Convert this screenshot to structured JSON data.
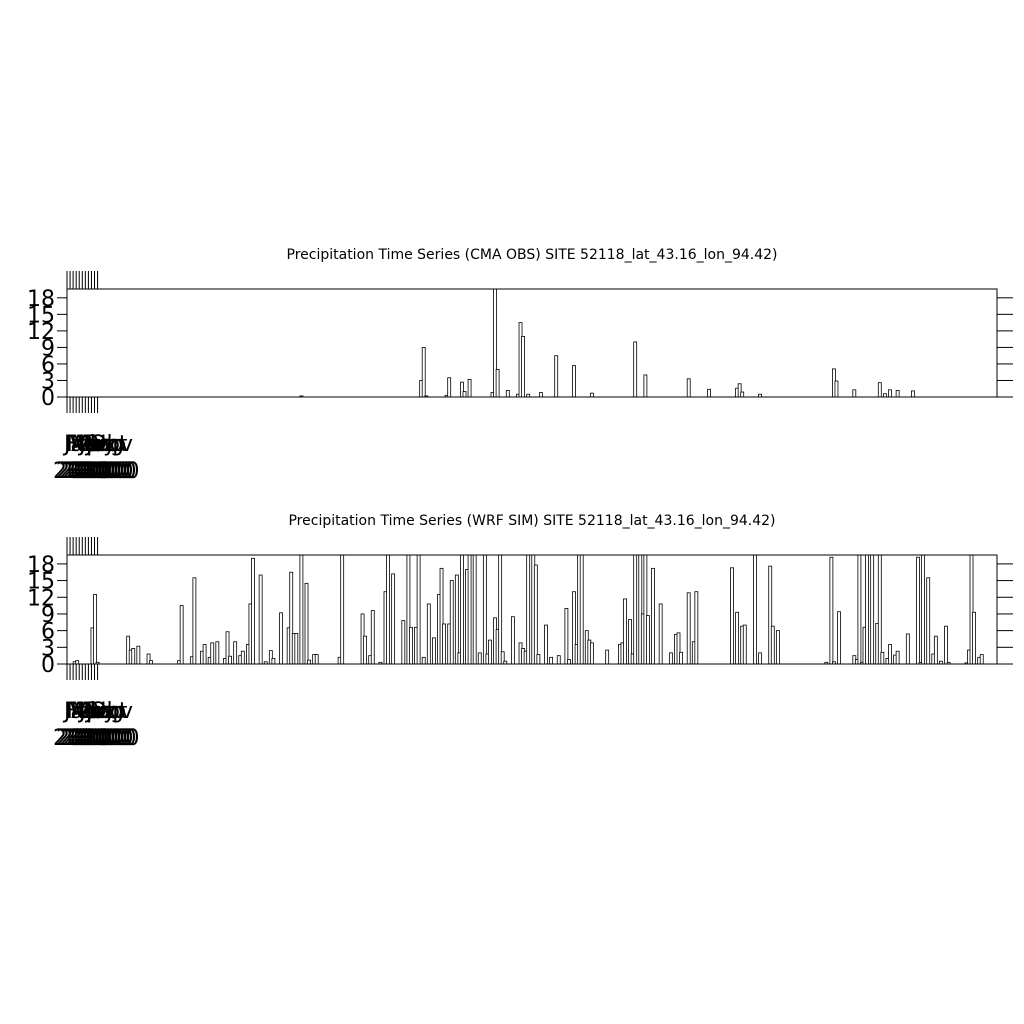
{
  "chart_data": [
    {
      "type": "bar",
      "title": "Precipitation Time Series (CMA OBS) SITE 52118_lat_43.16_lon_94.42)",
      "x": [
        92,
        139,
        140,
        141,
        149,
        150,
        155,
        156,
        158,
        167,
        168,
        169,
        173,
        177,
        178,
        179,
        181,
        186,
        192,
        199,
        206,
        223,
        227,
        244,
        252,
        263,
        264,
        265,
        272,
        301,
        302,
        309,
        319,
        321,
        323,
        326,
        332
      ],
      "values": [
        0.2,
        3,
        9,
        0.2,
        0.3,
        3.5,
        2.7,
        1,
        3.2,
        0.8,
        20,
        5,
        1.2,
        0.5,
        13.5,
        11,
        0.5,
        0.8,
        7.5,
        5.7,
        0.7,
        10,
        4,
        3.3,
        1.4,
        1.6,
        2.4,
        0.9,
        0.5,
        5.1,
        2.9,
        1.3,
        2.6,
        0.6,
        1.3,
        1.2,
        1.1
      ],
      "color": "#ffffff",
      "xlim": [
        0,
        365
      ],
      "ylim": [
        0,
        19.6
      ],
      "yticks": [
        0,
        3,
        6,
        9,
        12,
        15,
        18
      ],
      "xticks": [
        {
          "value": 0,
          "label": "Jan"
        },
        {
          "value": 1.2,
          "label": "Feb"
        },
        {
          "value": 2.4,
          "label": "Mar"
        },
        {
          "value": 3.6,
          "label": "Apr"
        },
        {
          "value": 4.8,
          "label": "May"
        },
        {
          "value": 6,
          "label": "Jun"
        },
        {
          "value": 7.2,
          "label": "Jul"
        },
        {
          "value": 8.4,
          "label": "Aug"
        },
        {
          "value": 9.6,
          "label": "Sep"
        },
        {
          "value": 10.8,
          "label": "Oct"
        },
        {
          "value": 12,
          "label": "Nov"
        }
      ],
      "xtick_years": [
        "2010",
        "2010",
        "2010",
        "2010",
        "2010",
        "2010",
        "2010",
        "2010",
        "2010",
        "2010",
        "2010"
      ]
    },
    {
      "type": "bar",
      "title": "Precipitation Time Series (WRF SIM) SITE 52118_lat_43.16_lon_94.42)",
      "x": [
        3,
        4,
        10,
        11,
        12,
        24,
        25,
        26,
        28,
        32,
        33,
        44,
        45,
        49,
        50,
        53,
        54,
        56,
        57,
        59,
        62,
        63,
        64,
        66,
        68,
        69,
        71,
        72,
        73,
        76,
        78,
        80,
        81,
        84,
        87,
        88,
        89,
        90,
        92,
        94,
        95,
        97,
        98,
        107,
        108,
        116,
        117,
        119,
        120,
        123,
        125,
        126,
        128,
        132,
        134,
        135,
        137,
        138,
        140,
        142,
        144,
        146,
        147,
        148,
        150,
        151,
        153,
        154,
        155,
        157,
        158,
        160,
        162,
        164,
        165,
        166,
        168,
        169,
        170,
        171,
        172,
        175,
        178,
        179,
        180,
        181,
        183,
        184,
        185,
        188,
        190,
        193,
        196,
        197,
        199,
        200,
        201,
        202,
        204,
        205,
        206,
        212,
        217,
        218,
        219,
        221,
        222,
        223,
        225,
        226,
        227,
        228,
        230,
        233,
        237,
        239,
        240,
        241,
        244,
        246,
        247,
        261,
        263,
        265,
        266,
        270,
        272,
        276,
        277,
        279,
        298,
        300,
        301,
        303,
        309,
        310,
        311,
        312,
        313,
        314,
        316,
        318,
        319,
        320,
        322,
        323,
        325,
        326,
        330,
        334,
        335,
        336,
        338,
        340,
        341,
        343,
        345,
        346,
        353,
        354,
        355,
        356,
        358,
        359
      ],
      "values": [
        0.4,
        0.6,
        6.5,
        12.5,
        0.3,
        5,
        2.5,
        2.8,
        3.2,
        1.8,
        0.6,
        0.6,
        10.5,
        1.3,
        15.5,
        2.3,
        3.5,
        1.2,
        3.8,
        4,
        1,
        5.8,
        1.4,
        4,
        1.5,
        2.3,
        3.5,
        10.8,
        19,
        16,
        0.4,
        2.4,
        1,
        9.2,
        6.5,
        16.5,
        5.5,
        5.5,
        20,
        14.5,
        0.7,
        1.7,
        1.7,
        1.2,
        20,
        9,
        5,
        1.5,
        9.6,
        0.3,
        13,
        20,
        16.2,
        7.8,
        20,
        6.6,
        6.6,
        20,
        1.2,
        10.8,
        4.7,
        12.5,
        17.2,
        7.2,
        7.2,
        15,
        16,
        2,
        20,
        17,
        20,
        20,
        2,
        20,
        1.8,
        4.3,
        8.3,
        6.2,
        20,
        2.2,
        0.5,
        8.5,
        3.8,
        2.8,
        2.3,
        20,
        20,
        17.8,
        1.7,
        7,
        1.2,
        1.5,
        10,
        0.8,
        13,
        3.5,
        20,
        20,
        6,
        4.3,
        3.8,
        2.5,
        3.5,
        3.8,
        11.7,
        8,
        1.8,
        20,
        20,
        9,
        20,
        8.7,
        17.2,
        10.8,
        2,
        5.3,
        5.6,
        2.1,
        12.8,
        4,
        13,
        17.3,
        9.3,
        6.8,
        7,
        20,
        2,
        17.6,
        6.8,
        6,
        0.3,
        19.2,
        0.4,
        9.4,
        1.5,
        0.8,
        20,
        0.3,
        6.6,
        20,
        20,
        7.3,
        20,
        2.1,
        1,
        3.5,
        1.6,
        2.3,
        5.4,
        19.2,
        0.3,
        20,
        15.5,
        1.8,
        5,
        0.5,
        6.8,
        0.3,
        0.2,
        2.5,
        20,
        9.3,
        1.2,
        1.7
      ],
      "color": "#ffffff",
      "xlim": [
        0,
        365
      ],
      "ylim": [
        0,
        19.6
      ],
      "yticks": [
        0,
        3,
        6,
        9,
        12,
        15,
        18
      ],
      "xticks": [
        {
          "value": 0,
          "label": "Jan"
        },
        {
          "value": 1.2,
          "label": "Feb"
        },
        {
          "value": 2.4,
          "label": "Mar"
        },
        {
          "value": 3.6,
          "label": "Apr"
        },
        {
          "value": 4.8,
          "label": "May"
        },
        {
          "value": 6,
          "label": "Jun"
        },
        {
          "value": 7.2,
          "label": "Jul"
        },
        {
          "value": 8.4,
          "label": "Aug"
        },
        {
          "value": 9.6,
          "label": "Sep"
        },
        {
          "value": 10.8,
          "label": "Oct"
        },
        {
          "value": 12,
          "label": "Nov"
        }
      ],
      "xtick_years": [
        "2010",
        "2010",
        "2010",
        "2010",
        "2010",
        "2010",
        "2010",
        "2010",
        "2010",
        "2010",
        "2010"
      ]
    }
  ]
}
